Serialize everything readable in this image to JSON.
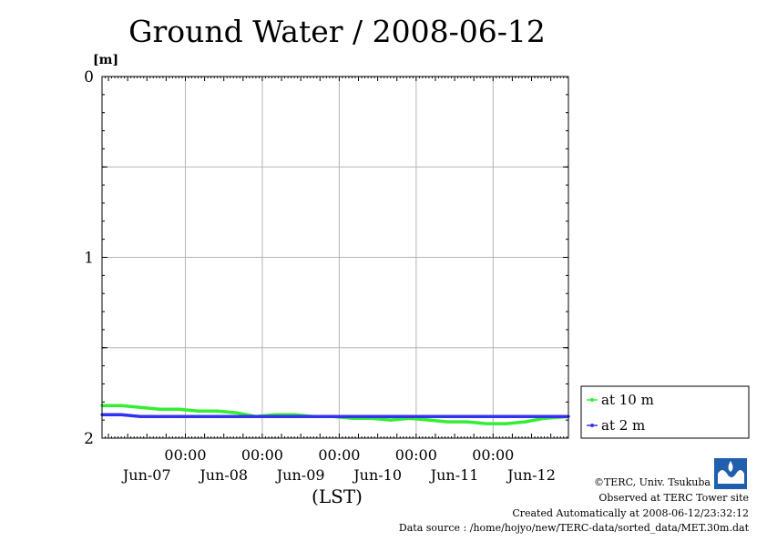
{
  "chart_data": {
    "type": "line",
    "title": "Ground Water / 2008-06-12",
    "xlabel": "(LST)",
    "ylabel": "[m]",
    "ylim": [
      0,
      2
    ],
    "y_inverted": true,
    "y_ticks": [
      "0",
      "1",
      "2"
    ],
    "x_time_labels": [
      "00:00",
      "00:00",
      "00:00",
      "00:00",
      "00:00"
    ],
    "x_date_labels": [
      "Jun-07",
      "Jun-08",
      "Jun-09",
      "Jun-10",
      "Jun-11",
      "Jun-12"
    ],
    "x_range": [
      "2008-06-06 22:00",
      "2008-06-12 23:30"
    ],
    "grid": true,
    "legend_position": "bottom-right outside",
    "series": [
      {
        "name": "at 10 m",
        "color": "#33ee33",
        "x": [
          "2008-06-06 22:00",
          "2008-06-07 04:00",
          "2008-06-07 10:00",
          "2008-06-07 16:00",
          "2008-06-07 22:00",
          "2008-06-08 04:00",
          "2008-06-08 10:00",
          "2008-06-08 16:00",
          "2008-06-08 22:00",
          "2008-06-09 04:00",
          "2008-06-09 10:00",
          "2008-06-09 16:00",
          "2008-06-09 22:00",
          "2008-06-10 04:00",
          "2008-06-10 10:00",
          "2008-06-10 16:00",
          "2008-06-10 22:00",
          "2008-06-11 04:00",
          "2008-06-11 10:00",
          "2008-06-11 16:00",
          "2008-06-11 22:00",
          "2008-06-12 04:00",
          "2008-06-12 10:00",
          "2008-06-12 16:00",
          "2008-06-12 23:30"
        ],
        "values": [
          1.82,
          1.82,
          1.83,
          1.84,
          1.84,
          1.85,
          1.85,
          1.86,
          1.88,
          1.87,
          1.87,
          1.88,
          1.88,
          1.89,
          1.89,
          1.9,
          1.89,
          1.9,
          1.91,
          1.91,
          1.92,
          1.92,
          1.91,
          1.89,
          1.88
        ]
      },
      {
        "name": "at 2 m",
        "color": "#3333ee",
        "x": [
          "2008-06-06 22:00",
          "2008-06-07 04:00",
          "2008-06-07 10:00",
          "2008-06-07 16:00",
          "2008-06-07 22:00",
          "2008-06-08 04:00",
          "2008-06-08 10:00",
          "2008-06-08 16:00",
          "2008-06-08 22:00",
          "2008-06-09 04:00",
          "2008-06-09 10:00",
          "2008-06-09 16:00",
          "2008-06-09 22:00",
          "2008-06-10 04:00",
          "2008-06-10 10:00",
          "2008-06-10 16:00",
          "2008-06-10 22:00",
          "2008-06-11 04:00",
          "2008-06-11 10:00",
          "2008-06-11 16:00",
          "2008-06-11 22:00",
          "2008-06-12 04:00",
          "2008-06-12 10:00",
          "2008-06-12 16:00",
          "2008-06-12 23:30"
        ],
        "values": [
          1.87,
          1.87,
          1.88,
          1.88,
          1.88,
          1.88,
          1.88,
          1.88,
          1.88,
          1.88,
          1.88,
          1.88,
          1.88,
          1.88,
          1.88,
          1.88,
          1.88,
          1.88,
          1.88,
          1.88,
          1.88,
          1.88,
          1.88,
          1.88,
          1.88
        ]
      }
    ]
  },
  "credits": {
    "copyright": "©TERC, Univ. Tsukuba",
    "observed": "Observed at TERC Tower site",
    "created": "Created Automatically at 2008-06-12/23:32:12",
    "source": "Data source : /home/hojyo/new/TERC-data/sorted_data/MET.30m.dat",
    "logo_text": "TERC"
  }
}
